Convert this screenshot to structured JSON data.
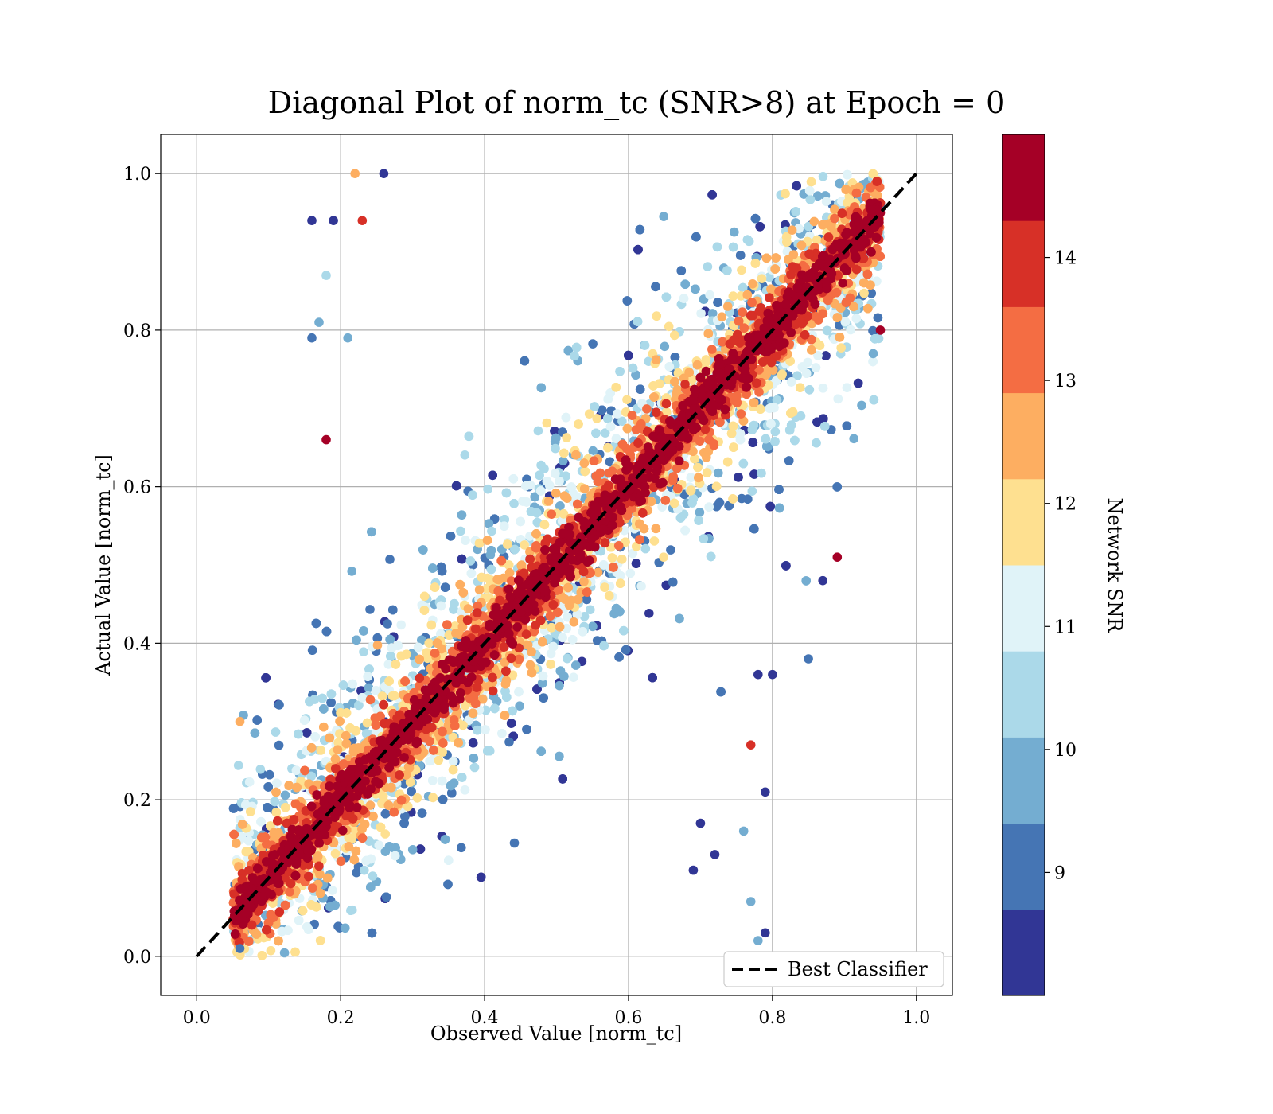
{
  "chart_data": {
    "type": "scatter",
    "title": "Diagonal Plot of norm_tc (SNR>8) at Epoch = 0",
    "xlabel": "Observed Value [norm_tc]",
    "ylabel": "Actual Value [norm_tc]",
    "xlim": [
      -0.05,
      1.05
    ],
    "ylim": [
      -0.05,
      1.05
    ],
    "xticks": [
      "0.0",
      "0.2",
      "0.4",
      "0.6",
      "0.8",
      "1.0"
    ],
    "yticks": [
      "0.0",
      "0.2",
      "0.4",
      "0.6",
      "0.8",
      "1.0"
    ],
    "grid": true,
    "reference_line": {
      "name": "Best Classifier",
      "x": [
        0,
        1
      ],
      "y": [
        0,
        1
      ],
      "style": "dashed",
      "color": "#000000"
    },
    "legend": {
      "placement": "bottom-right",
      "entries": [
        "Best Classifier"
      ]
    },
    "colorbar": {
      "label": "Network SNR",
      "range": [
        8,
        15
      ],
      "ticks": [
        "9",
        "10",
        "11",
        "12",
        "13",
        "14"
      ],
      "levels": [
        {
          "from": 8.0,
          "to": 8.7,
          "color": "#313695"
        },
        {
          "from": 8.7,
          "to": 9.4,
          "color": "#4575b4"
        },
        {
          "from": 9.4,
          "to": 10.1,
          "color": "#74add1"
        },
        {
          "from": 10.1,
          "to": 10.8,
          "color": "#abd9e9"
        },
        {
          "from": 10.8,
          "to": 11.5,
          "color": "#e0f3f8"
        },
        {
          "from": 11.5,
          "to": 12.2,
          "color": "#fee090"
        },
        {
          "from": 12.2,
          "to": 12.9,
          "color": "#fdae61"
        },
        {
          "from": 12.9,
          "to": 13.6,
          "color": "#f46d43"
        },
        {
          "from": 13.6,
          "to": 14.3,
          "color": "#d73027"
        },
        {
          "from": 14.3,
          "to": 15.0,
          "color": "#a50026"
        }
      ]
    },
    "points_summary": {
      "x_range": [
        0.05,
        0.95
      ],
      "y_range": [
        0.0,
        1.0
      ],
      "description_source": "dense scatter of predicted vs actual norm_tc colored by network SNR; high-SNR points cluster along the diagonal band, lower-SNR points scatter away from it"
    },
    "sample_points": [
      {
        "x": 0.16,
        "y": 0.94,
        "snr": 8.5
      },
      {
        "x": 0.19,
        "y": 0.94,
        "snr": 8.5
      },
      {
        "x": 0.23,
        "y": 0.94,
        "snr": 14.0
      },
      {
        "x": 0.26,
        "y": 1.0,
        "snr": 8.5
      },
      {
        "x": 0.22,
        "y": 1.0,
        "snr": 12.5
      },
      {
        "x": 0.18,
        "y": 0.87,
        "snr": 10.5
      },
      {
        "x": 0.17,
        "y": 0.81,
        "snr": 9.5
      },
      {
        "x": 0.16,
        "y": 0.79,
        "snr": 9.0
      },
      {
        "x": 0.21,
        "y": 0.79,
        "snr": 9.5
      },
      {
        "x": 0.18,
        "y": 0.66,
        "snr": 14.8
      },
      {
        "x": 0.89,
        "y": 0.51,
        "snr": 14.8
      },
      {
        "x": 0.87,
        "y": 0.48,
        "snr": 8.5
      },
      {
        "x": 0.85,
        "y": 0.38,
        "snr": 9.0
      },
      {
        "x": 0.78,
        "y": 0.36,
        "snr": 8.5
      },
      {
        "x": 0.8,
        "y": 0.36,
        "snr": 8.5
      },
      {
        "x": 0.77,
        "y": 0.27,
        "snr": 14.0
      },
      {
        "x": 0.79,
        "y": 0.21,
        "snr": 8.5
      },
      {
        "x": 0.76,
        "y": 0.16,
        "snr": 9.5
      },
      {
        "x": 0.77,
        "y": 0.07,
        "snr": 9.5
      },
      {
        "x": 0.79,
        "y": 0.03,
        "snr": 8.5
      },
      {
        "x": 0.78,
        "y": 0.02,
        "snr": 9.5
      },
      {
        "x": 0.72,
        "y": 0.13,
        "snr": 8.5
      },
      {
        "x": 0.69,
        "y": 0.11,
        "snr": 8.5
      },
      {
        "x": 0.7,
        "y": 0.17,
        "snr": 8.5
      },
      {
        "x": 0.06,
        "y": 0.01,
        "snr": 9.0
      },
      {
        "x": 0.06,
        "y": 0.3,
        "snr": 12.5
      },
      {
        "x": 0.95,
        "y": 0.95,
        "snr": 14.8
      },
      {
        "x": 0.95,
        "y": 0.8,
        "snr": 14.8
      },
      {
        "x": 0.94,
        "y": 0.77,
        "snr": 10.0
      }
    ]
  }
}
